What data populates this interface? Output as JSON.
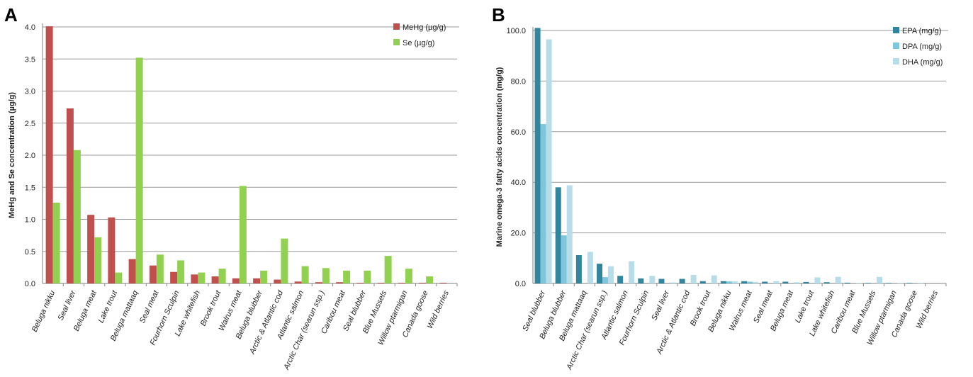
{
  "chart_data": [
    {
      "panel": "A",
      "type": "bar",
      "ylabel": "MeHg and Se concentration (µg/g)",
      "xlabel": "",
      "ylim": [
        0,
        4.0
      ],
      "yticks": [
        "0.0",
        "0.5",
        "1.0",
        "1.5",
        "2.0",
        "2.5",
        "3.0",
        "3.5",
        "4.0"
      ],
      "grid": true,
      "legend_position": "top-right",
      "categories": [
        "Beluga nikku",
        "Seal liver",
        "Beluga meat",
        "Lake trout",
        "Beluga mattaaq",
        "Seal meat",
        "Fourhorn Sculpin",
        "Lake whitefish",
        "Brook trout",
        "Walrus meat",
        "Beluga blubber",
        "Arctic & Atlantic cod",
        "Atlantic salmon",
        "Arctic Char (searun ssp.)",
        "Caribou meat",
        "Seal blubber",
        "Blue Mussels",
        "Willow ptarmigan",
        "Canada  goose",
        "Wild berries"
      ],
      "series": [
        {
          "name": "MeHg (µg/g)",
          "color": "#c0504d",
          "values": [
            4.01,
            2.73,
            1.07,
            1.03,
            0.38,
            0.28,
            0.18,
            0.14,
            0.11,
            0.08,
            0.08,
            0.06,
            0.03,
            0.02,
            0.02,
            0.01,
            0.01,
            0.01,
            0.01,
            0.01
          ]
        },
        {
          "name": "Se (µg/g)",
          "color": "#92d050",
          "values": [
            1.26,
            2.08,
            0.72,
            0.17,
            3.52,
            0.45,
            0.36,
            0.17,
            0.23,
            1.52,
            0.2,
            0.7,
            0.27,
            0.24,
            0.2,
            0.2,
            0.43,
            0.23,
            0.11,
            0.0
          ]
        }
      ]
    },
    {
      "panel": "B",
      "type": "bar",
      "ylabel": "Marine omega-3 fatty acids concentration (mg/g)",
      "xlabel": "",
      "ylim": [
        0,
        100
      ],
      "yticks": [
        "0.0",
        "20.0",
        "40.0",
        "60.0",
        "80.0",
        "100.0"
      ],
      "grid": true,
      "legend_position": "top-right",
      "categories": [
        "Seal blubber",
        "Beluga blubber",
        "Beluga mattaaq",
        "Arctic Char (searun ssp.)",
        "Atlantic salmon",
        "Fourhorn Sculpin",
        "Seal liver",
        "Arctic & Atlantic cod",
        "Brook trout",
        "Beluga nikku",
        "Walrus meat",
        "Seal meat",
        "Beluga meat",
        "Lake trout",
        "Lake whitefish",
        "Caribou meat",
        "Blue Mussels",
        "Willow ptarmigan",
        "Canada  goose",
        "Wild berries"
      ],
      "series": [
        {
          "name": "EPA (mg/g)",
          "color": "#31859c",
          "values": [
            101.0,
            38.0,
            11.2,
            7.8,
            3.0,
            2.0,
            1.8,
            1.8,
            0.9,
            0.9,
            0.9,
            0.7,
            0.7,
            0.6,
            0.5,
            0.3,
            0.2,
            0.2,
            0.2,
            0.0
          ]
        },
        {
          "name": "DPA (mg/g)",
          "color": "#7ec6dc",
          "values": [
            63.0,
            19.0,
            0.0,
            2.5,
            0.0,
            0.0,
            0.0,
            0.0,
            0.0,
            0.8,
            0.7,
            0.0,
            0.0,
            0.0,
            0.0,
            0.0,
            0.0,
            0.0,
            0.0,
            0.0
          ]
        },
        {
          "name": "DHA (mg/g)",
          "color": "#b7dee8",
          "values": [
            96.5,
            38.8,
            12.5,
            6.8,
            8.8,
            3.0,
            0.4,
            3.4,
            3.2,
            0.8,
            0.6,
            0.9,
            0.5,
            2.4,
            2.6,
            0.2,
            2.6,
            0.2,
            0.2,
            0.0
          ]
        }
      ]
    }
  ]
}
